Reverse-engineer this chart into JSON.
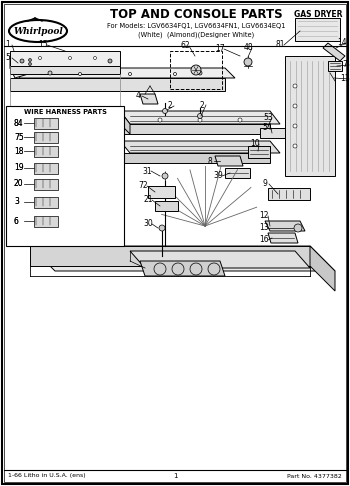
{
  "title": "TOP AND CONSOLE PARTS",
  "subtitle1": "For Models: LGV6634FQ1, LGV6634FN1, LGV6634EQ1",
  "subtitle2": "(White)  (Almond)(Designer White)",
  "category": "GAS DRYER",
  "footer_left": "1-66 Litho in U.S.A. (ens)",
  "footer_center": "1",
  "footer_right": "Part No. 4377382",
  "whirlpool_text": "Whirlpool",
  "harness_box_title": "WIRE HARNESS PARTS",
  "bg_color": "#ffffff",
  "border_color": "#000000",
  "figsize": [
    3.5,
    4.86
  ],
  "dpi": 100
}
